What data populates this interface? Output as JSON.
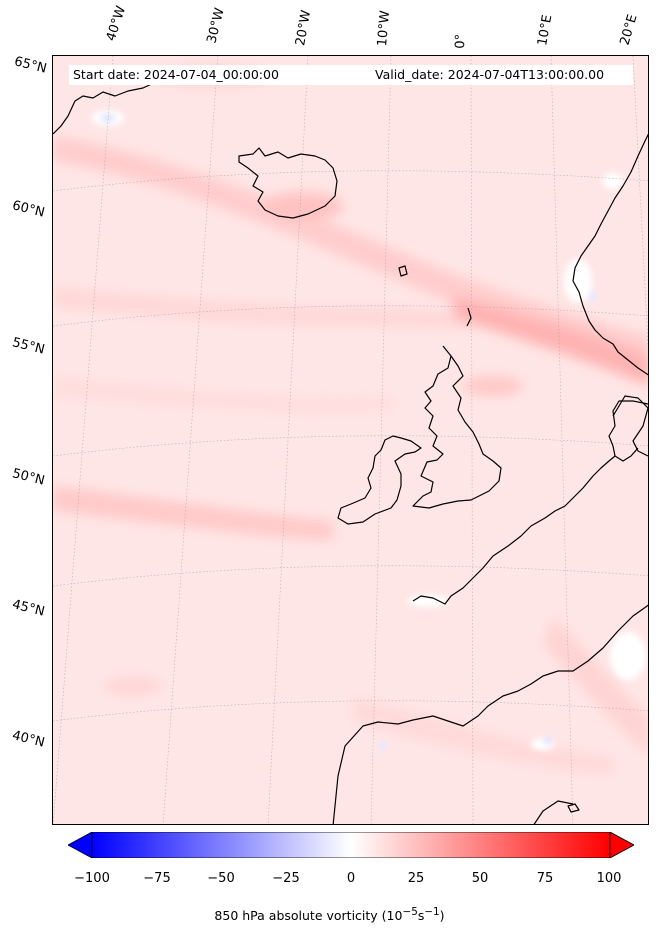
{
  "header": {
    "start_label": "Start date: 2024-07-04_00:00:00",
    "valid_label": "Valid_date: 2024-07-04T13:00:00.00"
  },
  "axes": {
    "lon_labels": [
      "40°W",
      "30°W",
      "20°W",
      "10°W",
      "0°",
      "10°E",
      "20°E"
    ],
    "lat_labels": [
      "65°N",
      "60°N",
      "55°N",
      "50°N",
      "45°N",
      "40°N"
    ]
  },
  "colorbar": {
    "ticks": [
      "−100",
      "−75",
      "−50",
      "−25",
      "0",
      "25",
      "50",
      "75",
      "100"
    ],
    "label_prefix": "850 hPa absolute vorticity (10",
    "label_sup1": "−5",
    "label_mid": "s",
    "label_sup2": "−1",
    "label_suffix": ")",
    "range": [
      -100,
      100
    ],
    "extend": "both",
    "colormap": "bwr",
    "color_min": "#0000ff",
    "color_mid": "#ffffff",
    "color_max": "#ff0000"
  },
  "map": {
    "projection": "Lambert conformal",
    "field": "850 hPa absolute vorticity",
    "background_color": "#ffeaea",
    "land_outline_color": "#000000",
    "gridline_style": "dotted"
  }
}
